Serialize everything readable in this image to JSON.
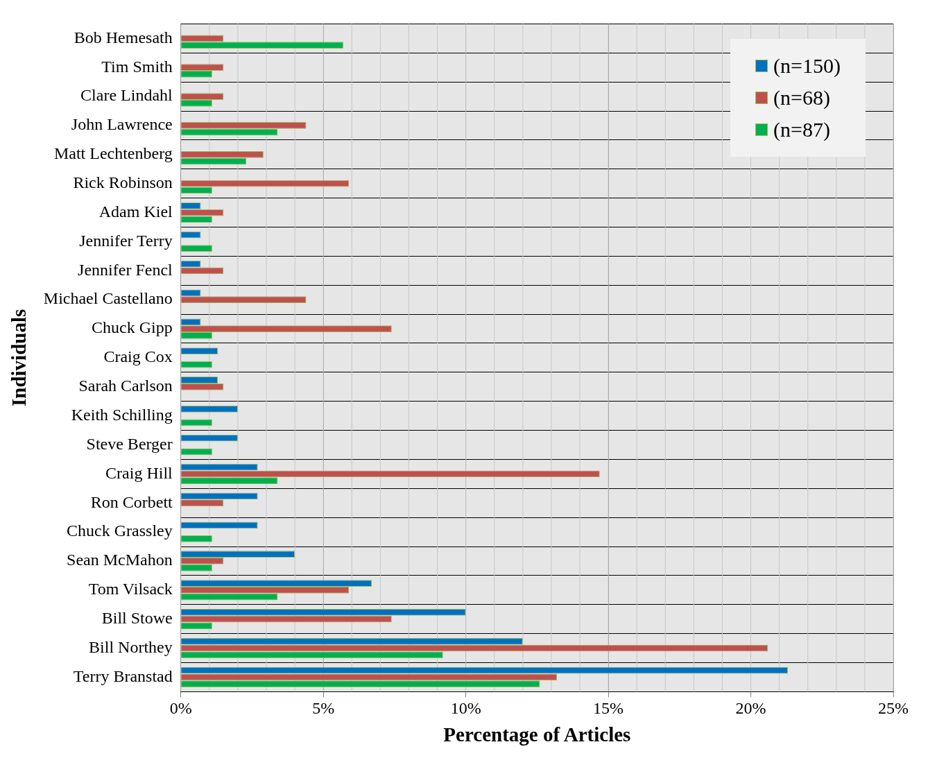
{
  "chart_data": {
    "type": "bar",
    "orientation": "horizontal",
    "xlabel": "Percentage of Articles",
    "ylabel": "Individuals",
    "categories": [
      "Bob Hemesath",
      "Tim Smith",
      "Clare Lindahl",
      "John Lawrence",
      "Matt Lechtenberg",
      "Rick Robinson",
      "Adam Kiel",
      "Jennifer Terry",
      "Jennifer Fencl",
      "Michael Castellano",
      "Chuck Gipp",
      "Craig Cox",
      "Sarah Carlson",
      "Keith Schilling",
      "Steve Berger",
      "Craig Hill",
      "Ron Corbett",
      "Chuck Grassley",
      "Sean McMahon",
      "Tom Vilsack",
      "Bill Stowe",
      "Bill Northey",
      "Terry Branstad"
    ],
    "series": [
      {
        "name": "(n=150)",
        "color": "#0070c0",
        "values": [
          null,
          null,
          null,
          null,
          null,
          null,
          0.7,
          0.7,
          0.7,
          0.7,
          0.7,
          1.3,
          1.3,
          2.0,
          2.0,
          2.7,
          2.7,
          2.7,
          4.0,
          6.7,
          10.0,
          12.0,
          21.3
        ]
      },
      {
        "name": "(n=68)",
        "color": "#c0504d",
        "values": [
          1.5,
          1.5,
          1.5,
          4.4,
          2.9,
          5.9,
          1.5,
          null,
          1.5,
          4.4,
          7.4,
          null,
          1.5,
          null,
          null,
          14.7,
          1.5,
          null,
          1.5,
          5.9,
          7.4,
          20.6,
          13.2
        ]
      },
      {
        "name": "(n=87)",
        "color": "#00b050",
        "values": [
          5.7,
          1.1,
          1.1,
          3.4,
          2.3,
          1.1,
          1.1,
          1.1,
          null,
          null,
          1.1,
          1.1,
          null,
          1.1,
          1.1,
          3.4,
          null,
          1.1,
          1.1,
          3.4,
          1.1,
          9.2,
          12.6
        ]
      }
    ],
    "xlim": [
      0,
      25
    ],
    "xticks": [
      {
        "value": 0,
        "label": "0%"
      },
      {
        "value": 5,
        "label": "5%"
      },
      {
        "value": 10,
        "label": "10%"
      },
      {
        "value": 15,
        "label": "15%"
      },
      {
        "value": 20,
        "label": "20%"
      },
      {
        "value": 25,
        "label": "25%"
      }
    ],
    "grid": true,
    "legend": "top right"
  }
}
